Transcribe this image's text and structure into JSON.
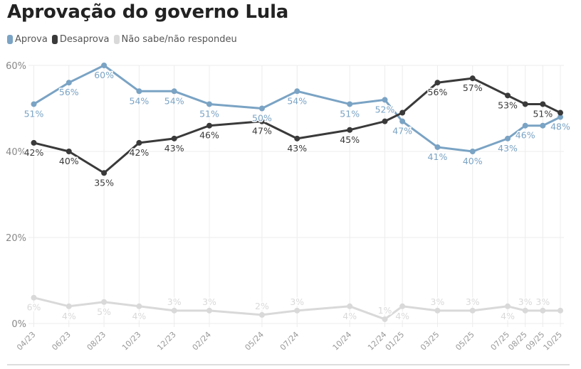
{
  "header": {
    "title": "Aprovação do governo Lula"
  },
  "legend": [
    {
      "label": "Aprova",
      "color": "#7aa3c4"
    },
    {
      "label": "Desaprova",
      "color": "#3a3a3a"
    },
    {
      "label": "Não sabe/não respondeu",
      "color": "#d9d9d9"
    }
  ],
  "chart_data": {
    "type": "line",
    "title": "Aprovação do governo Lula",
    "xlabel": "",
    "ylabel": "",
    "ylim": [
      0,
      60
    ],
    "yticks": [
      0,
      20,
      40,
      60
    ],
    "ytick_labels": [
      "0%",
      "20%",
      "40%",
      "60%"
    ],
    "grid": true,
    "legend_position": "top-left",
    "x": [
      "04/23",
      "06/23",
      "08/23",
      "10/23",
      "12/23",
      "02/24",
      "05/24",
      "07/24",
      "10/24",
      "12/24",
      "01/25",
      "03/25",
      "05/25",
      "07/25",
      "08/25",
      "09/25",
      "10/25"
    ],
    "x_month_index": [
      0,
      2,
      4,
      6,
      8,
      10,
      13,
      15,
      18,
      20,
      21,
      23,
      25,
      27,
      28,
      29,
      30
    ],
    "series": [
      {
        "name": "Aprova",
        "color": "#7aa3c4",
        "values": [
          51,
          56,
          60,
          54,
          54,
          51,
          50,
          54,
          51,
          52,
          47,
          41,
          40,
          43,
          46,
          46,
          48
        ],
        "labels": [
          "51%",
          "56%",
          "60%",
          "54%",
          "54%",
          "51%",
          "50%",
          "54%",
          "51%",
          "52%",
          "47%",
          "41%",
          "40%",
          "43%",
          "46%",
          "",
          "48%"
        ],
        "label_pos": [
          "below",
          "below",
          "below",
          "below",
          "below",
          "below",
          "below",
          "below",
          "below",
          "below",
          "below",
          "below",
          "below",
          "below",
          "below",
          "",
          "below"
        ]
      },
      {
        "name": "Desaprova",
        "color": "#3a3a3a",
        "values": [
          42,
          40,
          35,
          42,
          43,
          46,
          47,
          43,
          45,
          47,
          49,
          56,
          57,
          53,
          51,
          51,
          49
        ],
        "labels": [
          "42%",
          "40%",
          "35%",
          "42%",
          "43%",
          "46%",
          "47%",
          "43%",
          "45%",
          "",
          "",
          "56%",
          "57%",
          "53%",
          "",
          "51%",
          ""
        ],
        "label_pos": [
          "below",
          "below",
          "below",
          "below",
          "below",
          "below",
          "below",
          "below",
          "below",
          "",
          "",
          "below",
          "below",
          "below",
          "",
          "below",
          ""
        ]
      },
      {
        "name": "Não sabe/não respondeu",
        "color": "#d9d9d9",
        "values": [
          6,
          4,
          5,
          4,
          3,
          3,
          2,
          3,
          4,
          1,
          4,
          3,
          3,
          4,
          3,
          3,
          3
        ],
        "labels": [
          "6%",
          "4%",
          "5%",
          "4%",
          "3%",
          "3%",
          "2%",
          "3%",
          "4%",
          "1%",
          "4%",
          "3%",
          "3%",
          "4%",
          "3%",
          "3%",
          ""
        ],
        "label_pos": [
          "below",
          "below",
          "below",
          "below",
          "above",
          "above",
          "above",
          "above",
          "below",
          "above",
          "below",
          "above",
          "above",
          "below",
          "above",
          "above",
          ""
        ]
      }
    ]
  }
}
